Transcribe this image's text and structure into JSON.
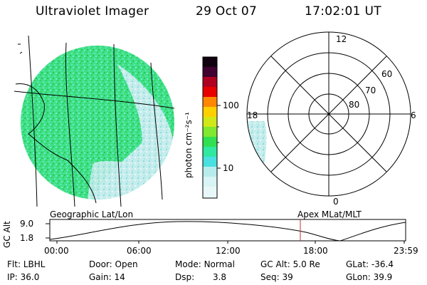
{
  "header": {
    "instrument": "Ultraviolet Imager",
    "date": "29 Oct 07",
    "time": "17:02:01 UT"
  },
  "colorbar": {
    "unit_label": "photon cm⁻²s⁻¹",
    "ticks": [
      "100",
      "10"
    ],
    "colors": [
      "#e8f7f7",
      "#b8ecec",
      "#48e0e0",
      "#30e8a0",
      "#30e050",
      "#80e830",
      "#d0e818",
      "#ffd000",
      "#ff8800",
      "#e80000",
      "#b00020",
      "#800040",
      "#400030",
      "#100010"
    ]
  },
  "polar": {
    "mlt_labels": {
      "top": "12",
      "left": "18",
      "right": "6",
      "bottom": "0"
    },
    "lat_labels": [
      "60",
      "70",
      "80"
    ]
  },
  "plot": {
    "left_label": "Geographic Lat/Lon",
    "right_label": "Apex MLat/MLT",
    "ylabel": "GC Alt",
    "yticks": [
      "9.0",
      "1.8"
    ],
    "xticks": [
      "00:00",
      "06:00",
      "12:00",
      "18:00",
      "23:59"
    ]
  },
  "footer": {
    "row1": [
      {
        "label": "Flt:",
        "value": "LBHL"
      },
      {
        "label": "Door:",
        "value": "Open"
      },
      {
        "label": "Mode:",
        "value": "Normal"
      },
      {
        "label": "GC Alt:",
        "value": "5.0 Re"
      },
      {
        "label": "GLat:",
        "value": "-36.4"
      }
    ],
    "row2": [
      {
        "label": "IP:",
        "value": "36.0"
      },
      {
        "label": "Gain:",
        "value": "14"
      },
      {
        "label": "Dsp:",
        "value": "3.8"
      },
      {
        "label": "Seq:",
        "value": "39"
      },
      {
        "label": "GLon:",
        "value": "39.9"
      }
    ]
  }
}
